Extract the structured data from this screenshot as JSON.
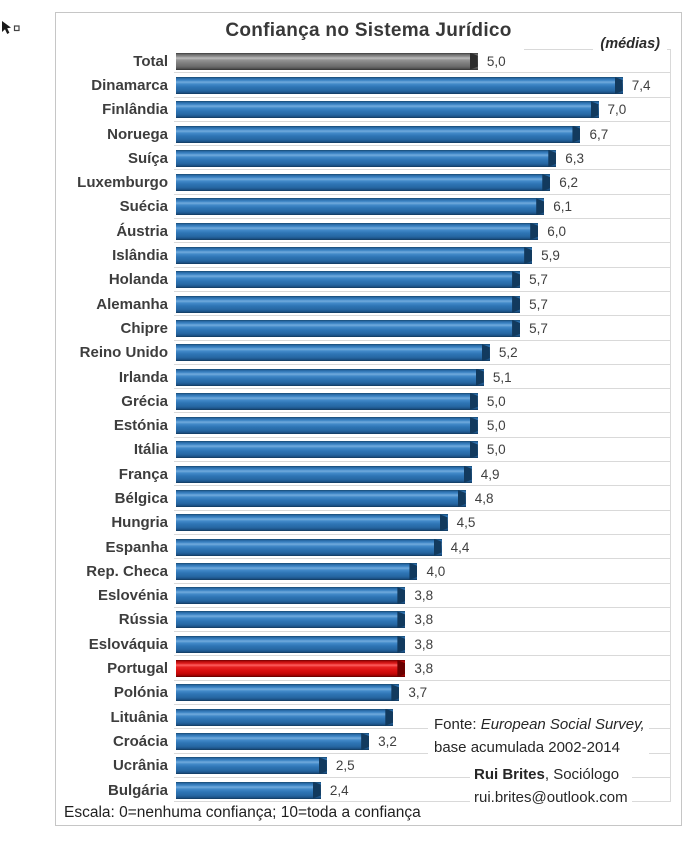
{
  "chart": {
    "title": "Confiança no Sistema Jurídico",
    "subtitle": "(médias)",
    "footer": "Escala: 0=nenhuma confiança; 10=toda a confiança",
    "source_prefix": "Fonte: ",
    "source_italic": "European Social Survey,",
    "source_line2": "base acumulada 2002-2014",
    "author_bold": "Rui Brites",
    "author_rest": ", Sociólogo",
    "author_email": "rui.brites@outlook.com",
    "colors": {
      "bar_default": "#2E75B6",
      "bar_total": "#7F7F7F",
      "bar_highlight": "#E01111",
      "gridline": "#D9D9D9",
      "text": "#3D3D3D"
    },
    "icons": {
      "top_left": "cursor-anchor-icon"
    }
  },
  "chart_data": {
    "type": "bar",
    "orientation": "horizontal",
    "title": "Confiança no Sistema Jurídico",
    "subtitle": "(médias)",
    "scale_note": "Escala: 0=nenhuma confiança; 10=toda a confiança",
    "xlim": [
      0,
      8.2
    ],
    "scale_max": 8.2,
    "grid": "row-separators",
    "categories": [
      "Total",
      "Dinamarca",
      "Finlândia",
      "Noruega",
      "Suíça",
      "Luxemburgo",
      "Suécia",
      "Áustria",
      "Islândia",
      "Holanda",
      "Alemanha",
      "Chipre",
      "Reino Unido",
      "Irlanda",
      "Grécia",
      "Estónia",
      "Itália",
      "França",
      "Bélgica",
      "Hungria",
      "Espanha",
      "Rep. Checa",
      "Eslovénia",
      "Rússia",
      "Eslováquia",
      "Portugal",
      "Polónia",
      "Lituânia",
      "Croácia",
      "Ucrânia",
      "Bulgária"
    ],
    "values": [
      5.0,
      7.4,
      7.0,
      6.7,
      6.3,
      6.2,
      6.1,
      6.0,
      5.9,
      5.7,
      5.7,
      5.7,
      5.2,
      5.1,
      5.0,
      5.0,
      5.0,
      4.9,
      4.8,
      4.5,
      4.4,
      4.0,
      3.8,
      3.8,
      3.8,
      3.8,
      3.7,
      3.6,
      3.2,
      2.5,
      2.4
    ],
    "value_labels": [
      "5,0",
      "7,4",
      "7,0",
      "6,7",
      "6,3",
      "6,2",
      "6,1",
      "6,0",
      "5,9",
      "5,7",
      "5,7",
      "5,7",
      "5,2",
      "5,1",
      "5,0",
      "5,0",
      "5,0",
      "4,9",
      "4,8",
      "4,5",
      "4,4",
      "4,0",
      "3,8",
      "3,8",
      "3,8",
      "3,8",
      "3,7",
      "",
      "3,2",
      "2,5",
      "2,4"
    ],
    "bar_styles": [
      "total",
      "default",
      "default",
      "default",
      "default",
      "default",
      "default",
      "default",
      "default",
      "default",
      "default",
      "default",
      "default",
      "default",
      "default",
      "default",
      "default",
      "default",
      "default",
      "default",
      "default",
      "default",
      "default",
      "default",
      "default",
      "highlight",
      "default",
      "default",
      "default",
      "default",
      "default"
    ]
  }
}
